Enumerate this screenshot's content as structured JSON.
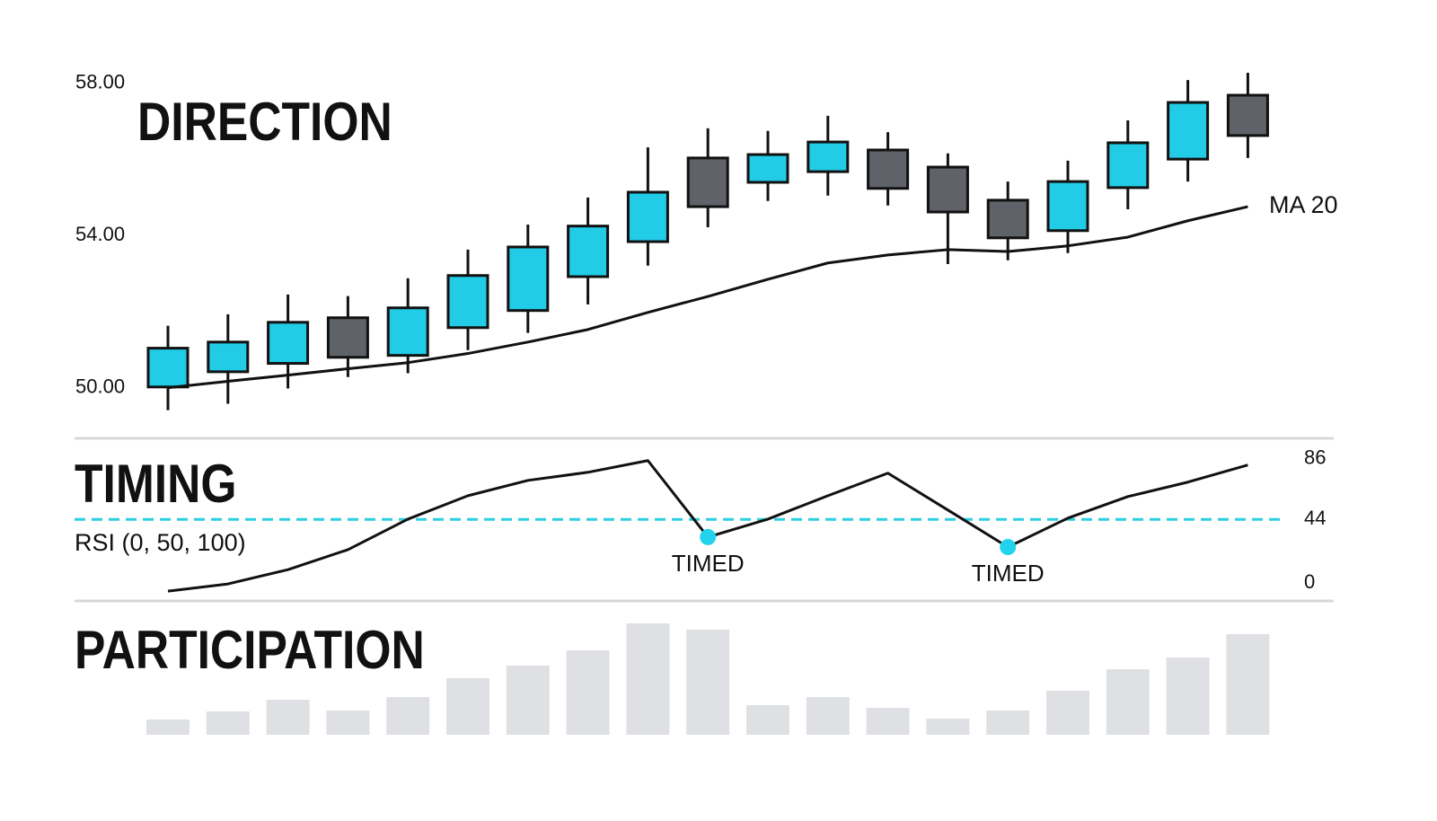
{
  "chart_data": [
    {
      "type": "candlestick",
      "title": "DIRECTION",
      "open": [
        50.02,
        50.42,
        50.64,
        51.84,
        50.85,
        51.58,
        52.03,
        52.92,
        53.84,
        56.04,
        55.4,
        55.68,
        56.25,
        55.8,
        54.93,
        54.13,
        55.26,
        56.01,
        57.69
      ],
      "high": [
        51.63,
        51.93,
        52.45,
        52.41,
        52.88,
        53.63,
        54.29,
        55.0,
        56.32,
        56.82,
        56.75,
        57.15,
        56.72,
        56.16,
        55.42,
        55.97,
        57.03,
        58.09,
        58.28
      ],
      "low": [
        49.41,
        49.58,
        49.98,
        50.28,
        50.38,
        50.99,
        51.44,
        52.19,
        53.21,
        54.22,
        54.91,
        55.05,
        54.79,
        53.25,
        53.35,
        53.54,
        54.69,
        55.42,
        56.04
      ],
      "close": [
        51.04,
        51.2,
        51.72,
        50.8,
        52.1,
        52.95,
        53.7,
        54.25,
        55.14,
        54.76,
        56.13,
        56.46,
        55.24,
        54.62,
        53.94,
        55.42,
        56.44,
        57.5,
        56.63
      ],
      "up_color": "#22cbe6",
      "down_color": "#5f6268",
      "series": [
        {
          "name": "MA 20",
          "color": "#111111",
          "values": [
            50.0,
            50.17,
            50.33,
            50.5,
            50.66,
            50.9,
            51.2,
            51.53,
            51.98,
            52.4,
            52.85,
            53.28,
            53.49,
            53.63,
            53.58,
            53.73,
            53.96,
            54.39,
            54.76
          ]
        }
      ],
      "ylim": [
        49,
        58.8
      ],
      "yticks": [
        {
          "value": 50,
          "label": "50.00"
        },
        {
          "value": 54,
          "label": "54.00"
        },
        {
          "value": 58,
          "label": "58.00"
        }
      ]
    },
    {
      "type": "line",
      "title": "TIMING",
      "subtitle": "RSI (0, 50, 100)",
      "color": "#111111",
      "values": [
        -5.6,
        -0.6,
        9.3,
        23.1,
        44.2,
        60.4,
        71.0,
        76.6,
        84.7,
        31.8,
        44.2,
        60.4,
        76.0,
        50.5,
        24.9,
        44.9,
        59.8,
        69.8,
        81.6
      ],
      "reference_line": {
        "value": 44,
        "color": "#2ccfe0"
      },
      "annotations": [
        {
          "text": "TIMED",
          "point": 9
        },
        {
          "text": "TIMED",
          "point": 14
        }
      ],
      "marker_color": "#22d3ee",
      "ylim": [
        -8,
        92
      ],
      "yticks": [
        0,
        44,
        86
      ]
    },
    {
      "type": "bar",
      "title": "PARTICIPATION",
      "color": "#dfe0e3",
      "values": [
        17,
        26,
        39,
        27,
        42,
        63,
        77,
        94,
        124,
        117,
        33,
        42,
        30,
        18,
        27,
        49,
        73,
        86,
        112
      ],
      "ylim": [
        0,
        130
      ]
    }
  ]
}
